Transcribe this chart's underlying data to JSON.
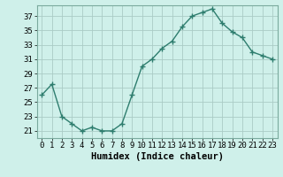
{
  "x": [
    0,
    1,
    2,
    3,
    4,
    5,
    6,
    7,
    8,
    9,
    10,
    11,
    12,
    13,
    14,
    15,
    16,
    17,
    18,
    19,
    20,
    21,
    22,
    23
  ],
  "y": [
    26,
    27.5,
    23,
    22,
    21,
    21.5,
    21,
    21,
    22,
    26,
    30,
    31,
    32.5,
    33.5,
    35.5,
    37,
    37.5,
    38,
    36,
    34.8,
    34,
    32,
    31.5,
    31
  ],
  "line_color": "#2e7d6e",
  "marker": "+",
  "bg_color": "#cff0ea",
  "grid_color": "#aaccc6",
  "xlabel": "Humidex (Indice chaleur)",
  "xlim": [
    -0.5,
    23.5
  ],
  "ylim": [
    20.0,
    38.5
  ],
  "yticks": [
    21,
    23,
    25,
    27,
    29,
    31,
    33,
    35,
    37
  ],
  "xticks": [
    0,
    1,
    2,
    3,
    4,
    5,
    6,
    7,
    8,
    9,
    10,
    11,
    12,
    13,
    14,
    15,
    16,
    17,
    18,
    19,
    20,
    21,
    22,
    23
  ],
  "xtick_labels": [
    "0",
    "1",
    "2",
    "3",
    "4",
    "5",
    "6",
    "7",
    "8",
    "9",
    "10",
    "11",
    "12",
    "13",
    "14",
    "15",
    "16",
    "17",
    "18",
    "19",
    "20",
    "21",
    "22",
    "23"
  ],
  "xlabel_fontsize": 7.5,
  "tick_fontsize": 6.5,
  "line_width": 1.0,
  "marker_size": 4,
  "marker_edge_width": 1.0
}
